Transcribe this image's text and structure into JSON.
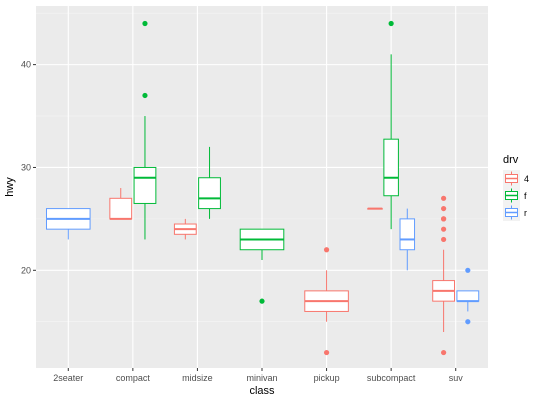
{
  "chart_data": {
    "type": "boxplot",
    "xlabel": "class",
    "ylabel": "hwy",
    "categories": [
      "2seater",
      "compact",
      "midsize",
      "minivan",
      "pickup",
      "subcompact",
      "suv"
    ],
    "yticks": [
      20,
      30,
      40
    ],
    "ylim": [
      10.5,
      45.7
    ],
    "grid": true,
    "legend": {
      "title": "drv",
      "position": "right",
      "entries": [
        {
          "label": "4",
          "color": "#F8766D"
        },
        {
          "label": "f",
          "color": "#00BA38"
        },
        {
          "label": "r",
          "color": "#619CFF"
        }
      ]
    },
    "groups": [
      {
        "category": "2seater",
        "drv": "r",
        "color": "#619CFF",
        "min": 23,
        "q1": 24,
        "median": 25,
        "q3": 26,
        "max": 26,
        "outliers": []
      },
      {
        "category": "compact",
        "drv": "4",
        "color": "#F8766D",
        "min": 25,
        "q1": 25,
        "median": 25,
        "q3": 27,
        "max": 28,
        "outliers": []
      },
      {
        "category": "compact",
        "drv": "f",
        "color": "#00BA38",
        "min": 23,
        "q1": 26.5,
        "median": 29,
        "q3": 30,
        "max": 35,
        "outliers": [
          37,
          44
        ]
      },
      {
        "category": "midsize",
        "drv": "4",
        "color": "#F8766D",
        "min": 23,
        "q1": 23.5,
        "median": 24,
        "q3": 24.5,
        "max": 25,
        "outliers": []
      },
      {
        "category": "midsize",
        "drv": "f",
        "color": "#00BA38",
        "min": 25,
        "q1": 26,
        "median": 27,
        "q3": 29,
        "max": 32,
        "outliers": []
      },
      {
        "category": "minivan",
        "drv": "f",
        "color": "#00BA38",
        "min": 21,
        "q1": 22,
        "median": 23,
        "q3": 24,
        "max": 24,
        "outliers": [
          17
        ]
      },
      {
        "category": "pickup",
        "drv": "4",
        "color": "#F8766D",
        "min": 15,
        "q1": 16,
        "median": 17,
        "q3": 18,
        "max": 20,
        "outliers": [
          12,
          22
        ]
      },
      {
        "category": "subcompact",
        "drv": "4",
        "color": "#F8766D",
        "min": 26,
        "q1": 26,
        "median": 26,
        "q3": 26,
        "max": 26,
        "outliers": []
      },
      {
        "category": "subcompact",
        "drv": "f",
        "color": "#00BA38",
        "min": 24,
        "q1": 27.25,
        "median": 29,
        "q3": 32.75,
        "max": 41,
        "outliers": [
          44
        ]
      },
      {
        "category": "subcompact",
        "drv": "r",
        "color": "#619CFF",
        "min": 20,
        "q1": 22,
        "median": 23,
        "q3": 25,
        "max": 26,
        "outliers": []
      },
      {
        "category": "suv",
        "drv": "4",
        "color": "#F8766D",
        "min": 14,
        "q1": 17,
        "median": 18,
        "q3": 19,
        "max": 22,
        "outliers": [
          12,
          23,
          24,
          25,
          25,
          26,
          27
        ]
      },
      {
        "category": "suv",
        "drv": "r",
        "color": "#619CFF",
        "min": 16,
        "q1": 17,
        "median": 17,
        "q3": 18,
        "max": 18,
        "outliers": [
          15,
          20
        ]
      }
    ]
  }
}
